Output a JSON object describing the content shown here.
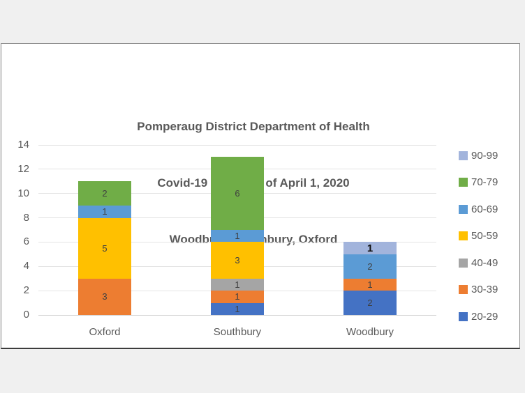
{
  "window": {
    "background_color": "#f0f0f0",
    "panel_background": "#ffffff",
    "panel_border_color": "#8a8a8a"
  },
  "chart_data": {
    "type": "bar",
    "stacked": true,
    "title_lines": [
      "Pomperaug District Department of Health",
      "Covid-19 Cases as of April 1, 2020",
      "Woodbury, Southbury, Oxford"
    ],
    "title_color": "#595959",
    "categories": [
      "Oxford",
      "Southbury",
      "Woodbury"
    ],
    "series": [
      {
        "name": "20-29",
        "color": "#4472C4",
        "values": [
          0,
          1,
          2
        ]
      },
      {
        "name": "30-39",
        "color": "#ED7D31",
        "values": [
          3,
          1,
          1
        ]
      },
      {
        "name": "40-49",
        "color": "#A5A5A5",
        "values": [
          0,
          1,
          0
        ]
      },
      {
        "name": "50-59",
        "color": "#FFC000",
        "values": [
          5,
          3,
          0
        ]
      },
      {
        "name": "60-69",
        "color": "#5B9BD5",
        "values": [
          1,
          1,
          2
        ]
      },
      {
        "name": "70-79",
        "color": "#70AD47",
        "values": [
          2,
          6,
          0
        ]
      },
      {
        "name": "90-99",
        "color": "#A2B4DC",
        "values": [
          0,
          0,
          1
        ]
      }
    ],
    "legend_order": [
      "90-99",
      "70-79",
      "60-69",
      "50-59",
      "40-49",
      "30-39",
      "20-29"
    ],
    "legend_position": "right",
    "y_ticks": [
      0,
      2,
      4,
      6,
      8,
      10,
      12,
      14
    ],
    "ylim": [
      0,
      14
    ],
    "grid": true,
    "bar_totals": {
      "Oxford": 11,
      "Southbury": 13,
      "Woodbury": 6
    },
    "data_label_color": "#404040",
    "emphasized_labels": [
      {
        "category": "Woodbury",
        "series": "90-99"
      }
    ]
  }
}
